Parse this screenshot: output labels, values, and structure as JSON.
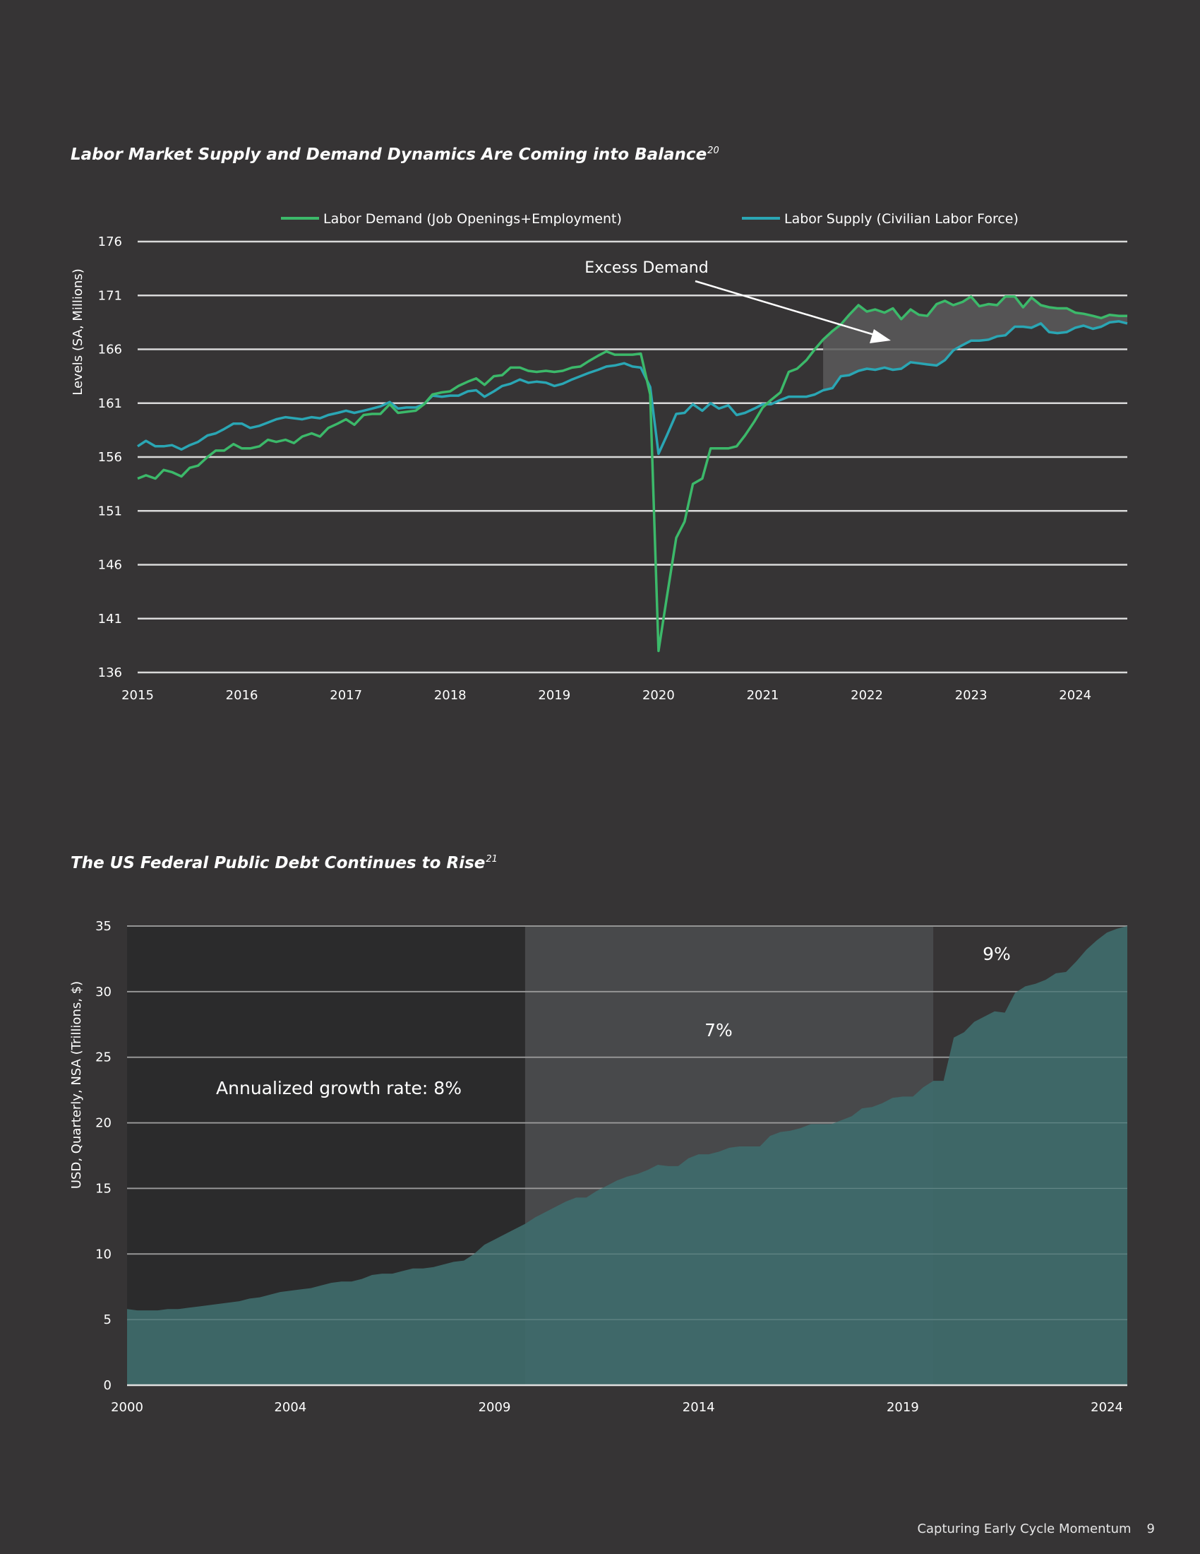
{
  "page": {
    "footer_text": "Capturing Early Cycle Momentum",
    "page_number": "9"
  },
  "colors": {
    "background": "#363435",
    "demand": "#3cb96a",
    "supply": "#2aa6b4",
    "excess_fill": "#5a5a5a",
    "area": "#3f6b6b",
    "grid": "#d9d9d9"
  },
  "chart_data": [
    {
      "type": "line",
      "title": "Labor Market Supply and Demand Dynamics Are Coming into Balance",
      "title_footnote": "20",
      "ylabel": "Levels (SA, Millions)",
      "xlabel": "",
      "ylim": [
        136,
        176
      ],
      "yticks": [
        176,
        171,
        166,
        161,
        156,
        151,
        146,
        141,
        136
      ],
      "xlim": [
        2015.0,
        2024.5
      ],
      "xticks": [
        "2015",
        "2016",
        "2017",
        "2018",
        "2019",
        "2020",
        "2021",
        "2022",
        "2023",
        "2024"
      ],
      "annotation": "Excess Demand",
      "legend_position": "top",
      "series": [
        {
          "name": "Labor Demand (Job Openings+Employment)",
          "x": [
            2015.0,
            2015.08,
            2015.17,
            2015.25,
            2015.33,
            2015.42,
            2015.5,
            2015.58,
            2015.67,
            2015.75,
            2015.83,
            2015.92,
            2016.0,
            2016.08,
            2016.17,
            2016.25,
            2016.33,
            2016.42,
            2016.5,
            2016.58,
            2016.67,
            2016.75,
            2016.83,
            2016.92,
            2017.0,
            2017.08,
            2017.17,
            2017.25,
            2017.33,
            2017.42,
            2017.5,
            2017.58,
            2017.67,
            2017.75,
            2017.83,
            2017.92,
            2018.0,
            2018.08,
            2018.17,
            2018.25,
            2018.33,
            2018.42,
            2018.5,
            2018.58,
            2018.67,
            2018.75,
            2018.83,
            2018.92,
            2019.0,
            2019.08,
            2019.17,
            2019.25,
            2019.33,
            2019.42,
            2019.5,
            2019.58,
            2019.67,
            2019.75,
            2019.83,
            2019.92,
            2020.0,
            2020.08,
            2020.17,
            2020.25,
            2020.33,
            2020.42,
            2020.5,
            2020.58,
            2020.67,
            2020.75,
            2020.83,
            2020.92,
            2021.0,
            2021.08,
            2021.17,
            2021.25,
            2021.33,
            2021.42,
            2021.5,
            2021.58,
            2021.67,
            2021.75,
            2021.83,
            2021.92,
            2022.0,
            2022.08,
            2022.17,
            2022.25,
            2022.33,
            2022.42,
            2022.5,
            2022.58,
            2022.67,
            2022.75,
            2022.83,
            2022.92,
            2023.0,
            2023.08,
            2023.17,
            2023.25,
            2023.33,
            2023.42,
            2023.5,
            2023.58,
            2023.67,
            2023.75,
            2023.83,
            2023.92,
            2024.0,
            2024.08,
            2024.17,
            2024.25,
            2024.33,
            2024.42,
            2024.5
          ],
          "values": [
            154.0,
            154.3,
            154.0,
            154.8,
            154.6,
            154.2,
            155.0,
            155.2,
            156.0,
            156.6,
            156.6,
            157.2,
            156.8,
            156.8,
            157.0,
            157.6,
            157.4,
            157.6,
            157.3,
            157.9,
            158.2,
            157.9,
            158.7,
            159.1,
            159.5,
            159.0,
            159.9,
            160.0,
            160.0,
            160.9,
            160.1,
            160.2,
            160.3,
            160.9,
            161.8,
            162.0,
            162.1,
            162.6,
            163.0,
            163.3,
            162.7,
            163.5,
            163.6,
            164.3,
            164.3,
            164.0,
            163.9,
            164.0,
            163.9,
            164.0,
            164.3,
            164.4,
            164.9,
            165.4,
            165.8,
            165.5,
            165.5,
            165.5,
            165.6,
            161.8,
            138.0,
            143.0,
            148.5,
            150.0,
            153.5,
            154.0,
            156.8,
            156.8,
            156.8,
            157.0,
            158.0,
            159.3,
            160.6,
            161.3,
            162.0,
            163.9,
            164.2,
            165.0,
            166.0,
            166.9,
            167.7,
            168.3,
            169.2,
            170.1,
            169.5,
            169.7,
            169.4,
            169.8,
            168.8,
            169.7,
            169.2,
            169.1,
            170.2,
            170.5,
            170.1,
            170.4,
            170.9,
            170.0,
            170.2,
            170.1,
            170.9,
            170.9,
            169.9,
            170.8,
            170.1,
            169.9,
            169.8,
            169.8,
            169.4,
            169.3,
            169.1,
            168.9,
            169.2,
            169.1,
            169.1
          ]
        },
        {
          "name": "Labor Supply (Civilian Labor Force)",
          "x": [
            2015.0,
            2015.08,
            2015.17,
            2015.25,
            2015.33,
            2015.42,
            2015.5,
            2015.58,
            2015.67,
            2015.75,
            2015.83,
            2015.92,
            2016.0,
            2016.08,
            2016.17,
            2016.25,
            2016.33,
            2016.42,
            2016.5,
            2016.58,
            2016.67,
            2016.75,
            2016.83,
            2016.92,
            2017.0,
            2017.08,
            2017.17,
            2017.25,
            2017.33,
            2017.42,
            2017.5,
            2017.58,
            2017.67,
            2017.75,
            2017.83,
            2017.92,
            2018.0,
            2018.08,
            2018.17,
            2018.25,
            2018.33,
            2018.42,
            2018.5,
            2018.58,
            2018.67,
            2018.75,
            2018.83,
            2018.92,
            2019.0,
            2019.08,
            2019.17,
            2019.25,
            2019.33,
            2019.42,
            2019.5,
            2019.58,
            2019.67,
            2019.75,
            2019.83,
            2019.92,
            2020.0,
            2020.08,
            2020.17,
            2020.25,
            2020.33,
            2020.42,
            2020.5,
            2020.58,
            2020.67,
            2020.75,
            2020.83,
            2020.92,
            2021.0,
            2021.08,
            2021.17,
            2021.25,
            2021.33,
            2021.42,
            2021.5,
            2021.58,
            2021.67,
            2021.75,
            2021.83,
            2021.92,
            2022.0,
            2022.08,
            2022.17,
            2022.25,
            2022.33,
            2022.42,
            2022.5,
            2022.58,
            2022.67,
            2022.75,
            2022.83,
            2022.92,
            2023.0,
            2023.08,
            2023.17,
            2023.25,
            2023.33,
            2023.42,
            2023.5,
            2023.58,
            2023.67,
            2023.75,
            2023.83,
            2023.92,
            2024.0,
            2024.08,
            2024.17,
            2024.25,
            2024.33,
            2024.42,
            2024.5
          ],
          "values": [
            157.0,
            157.5,
            157.0,
            157.0,
            157.1,
            156.7,
            157.1,
            157.4,
            158.0,
            158.2,
            158.6,
            159.1,
            159.1,
            158.7,
            158.9,
            159.2,
            159.5,
            159.7,
            159.6,
            159.5,
            159.7,
            159.6,
            159.9,
            160.1,
            160.3,
            160.1,
            160.3,
            160.5,
            160.7,
            161.1,
            160.5,
            160.6,
            160.6,
            160.9,
            161.7,
            161.6,
            161.7,
            161.7,
            162.1,
            162.2,
            161.6,
            162.1,
            162.6,
            162.8,
            163.2,
            162.9,
            163.0,
            162.9,
            162.6,
            162.8,
            163.2,
            163.5,
            163.8,
            164.1,
            164.4,
            164.5,
            164.7,
            164.4,
            164.3,
            162.5,
            156.3,
            158.0,
            160.0,
            160.1,
            160.9,
            160.3,
            161.0,
            160.5,
            160.8,
            159.9,
            160.1,
            160.5,
            160.9,
            160.9,
            161.3,
            161.6,
            161.6,
            161.6,
            161.8,
            162.2,
            162.4,
            163.5,
            163.6,
            164.0,
            164.2,
            164.1,
            164.3,
            164.1,
            164.2,
            164.8,
            164.7,
            164.6,
            164.5,
            165.0,
            165.9,
            166.4,
            166.8,
            166.8,
            166.9,
            167.2,
            167.3,
            168.1,
            168.1,
            168.0,
            168.4,
            167.6,
            167.5,
            167.6,
            168.0,
            168.2,
            167.9,
            168.1,
            168.5,
            168.6,
            168.4
          ]
        }
      ]
    },
    {
      "type": "area",
      "title": "The US Federal Public Debt Continues to Rise",
      "title_footnote": "21",
      "ylabel": "USD, Quarterly, NSA (Trillions, $)",
      "xlabel": "",
      "ylim": [
        0,
        35
      ],
      "yticks": [
        35,
        30,
        25,
        20,
        15,
        10,
        5,
        0
      ],
      "xlim": [
        2000.0,
        2024.5
      ],
      "xticks": [
        "2000",
        "2004",
        "2009",
        "2014",
        "2019",
        "2024"
      ],
      "regions": [
        {
          "from": 2000.0,
          "to": 2009.75,
          "label": "Annualized growth rate: 8%",
          "shade": "#2b2b2c"
        },
        {
          "from": 2009.75,
          "to": 2019.75,
          "label": "7%",
          "shade": "#48494b"
        },
        {
          "from": 2019.75,
          "to": 2024.5,
          "label": "9%",
          "shade": "#363435"
        }
      ],
      "series": [
        {
          "name": "US Federal Public Debt",
          "x": [
            2000.0,
            2000.25,
            2000.5,
            2000.75,
            2001.0,
            2001.25,
            2001.5,
            2001.75,
            2002.0,
            2002.25,
            2002.5,
            2002.75,
            2003.0,
            2003.25,
            2003.5,
            2003.75,
            2004.0,
            2004.25,
            2004.5,
            2004.75,
            2005.0,
            2005.25,
            2005.5,
            2005.75,
            2006.0,
            2006.25,
            2006.5,
            2006.75,
            2007.0,
            2007.25,
            2007.5,
            2007.75,
            2008.0,
            2008.25,
            2008.5,
            2008.75,
            2009.0,
            2009.25,
            2009.5,
            2009.75,
            2010.0,
            2010.25,
            2010.5,
            2010.75,
            2011.0,
            2011.25,
            2011.5,
            2011.75,
            2012.0,
            2012.25,
            2012.5,
            2012.75,
            2013.0,
            2013.25,
            2013.5,
            2013.75,
            2014.0,
            2014.25,
            2014.5,
            2014.75,
            2015.0,
            2015.25,
            2015.5,
            2015.75,
            2016.0,
            2016.25,
            2016.5,
            2016.75,
            2017.0,
            2017.25,
            2017.5,
            2017.75,
            2018.0,
            2018.25,
            2018.5,
            2018.75,
            2019.0,
            2019.25,
            2019.5,
            2019.75,
            2020.0,
            2020.25,
            2020.5,
            2020.75,
            2021.0,
            2021.25,
            2021.5,
            2021.75,
            2022.0,
            2022.25,
            2022.5,
            2022.75,
            2023.0,
            2023.25,
            2023.5,
            2023.75,
            2024.0,
            2024.25,
            2024.5
          ],
          "values": [
            5.8,
            5.7,
            5.7,
            5.7,
            5.8,
            5.8,
            5.9,
            6.0,
            6.1,
            6.2,
            6.3,
            6.4,
            6.6,
            6.7,
            6.9,
            7.1,
            7.2,
            7.3,
            7.4,
            7.6,
            7.8,
            7.9,
            7.9,
            8.1,
            8.4,
            8.5,
            8.5,
            8.7,
            8.9,
            8.9,
            9.0,
            9.2,
            9.4,
            9.5,
            10.0,
            10.7,
            11.1,
            11.5,
            11.9,
            12.3,
            12.8,
            13.2,
            13.6,
            14.0,
            14.3,
            14.3,
            14.8,
            15.2,
            15.6,
            15.9,
            16.1,
            16.4,
            16.8,
            16.7,
            16.7,
            17.3,
            17.6,
            17.6,
            17.8,
            18.1,
            18.2,
            18.2,
            18.2,
            19.0,
            19.3,
            19.4,
            19.6,
            19.9,
            19.9,
            19.9,
            20.2,
            20.5,
            21.1,
            21.2,
            21.5,
            21.9,
            22.0,
            22.0,
            22.7,
            23.2,
            23.2,
            26.5,
            26.9,
            27.7,
            28.1,
            28.5,
            28.4,
            29.9,
            30.4,
            30.6,
            30.9,
            31.4,
            31.5,
            32.3,
            33.2,
            33.9,
            34.5,
            34.8,
            35.0
          ]
        }
      ]
    }
  ]
}
